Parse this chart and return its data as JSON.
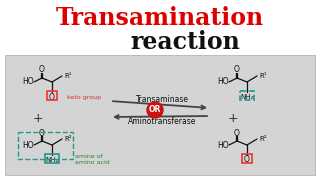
{
  "title_line1": "Transamination",
  "title_line2": "reaction",
  "title_color1": "#dd0000",
  "title_color2": "#111111",
  "bg_color": "#ffffff",
  "panel_bg": "#d4d4d4",
  "enzyme_text1": "Transaminase",
  "enzyme_text2": "Aminotransferase",
  "or_text": "OR",
  "keto_label": "keto group",
  "amine_label1": "amine of",
  "amine_label2": "amino acid",
  "arrow_color": "#444444",
  "or_bg": "#cc1111",
  "keto_box_color": "#ee3333",
  "teal_color": "#229988",
  "mol_color": "#111111",
  "label_green": "#228833",
  "label_red": "#cc3333"
}
